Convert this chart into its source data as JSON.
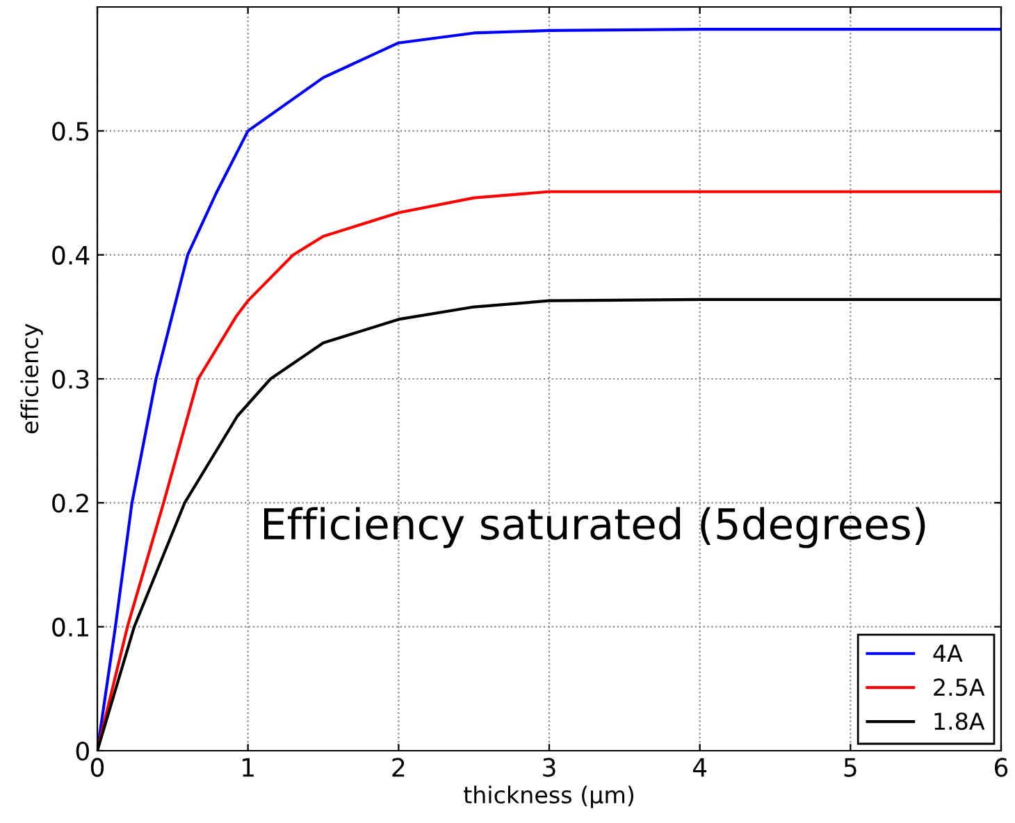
{
  "chart_data": {
    "type": "line",
    "xlabel": "thickness (μm)",
    "ylabel": "efficiency",
    "annotations": [
      "Efficiency saturated (5degrees)"
    ],
    "xlim": [
      0,
      6
    ],
    "xticks": [
      0,
      1,
      2,
      3,
      4,
      5,
      6
    ],
    "ylim": [
      0,
      0.6
    ],
    "yticks": [
      0,
      0.1,
      0.2,
      0.3,
      0.4,
      0.5
    ],
    "grid": true,
    "legend": "bottom right",
    "line_style": "solid",
    "marker": "none",
    "series": [
      {
        "name": "4A",
        "color": "#0000ff",
        "x": [
          0,
          0.12,
          0.23,
          0.39,
          0.6,
          0.79,
          1.0,
          1.5,
          2,
          2.5,
          3,
          4,
          5,
          6
        ],
        "values": [
          0,
          0.1,
          0.2,
          0.3,
          0.4,
          0.45,
          0.5,
          0.543,
          0.571,
          0.579,
          0.581,
          0.582,
          0.582,
          0.582
        ]
      },
      {
        "name": "2.5A",
        "color": "#ff0000",
        "x": [
          0,
          0.2,
          0.44,
          0.67,
          0.92,
          1.0,
          1.3,
          1.5,
          2,
          2.5,
          3,
          4,
          5,
          6
        ],
        "values": [
          0,
          0.1,
          0.2,
          0.3,
          0.35,
          0.363,
          0.4,
          0.415,
          0.434,
          0.446,
          0.451,
          0.451,
          0.451,
          0.451
        ]
      },
      {
        "name": "1.8A",
        "color": "#000000",
        "x": [
          0,
          0.245,
          0.58,
          0.93,
          1.15,
          1.5,
          2,
          2.5,
          3,
          4,
          5,
          6
        ],
        "values": [
          0,
          0.1,
          0.2,
          0.27,
          0.3,
          0.329,
          0.348,
          0.358,
          0.363,
          0.364,
          0.364,
          0.364
        ]
      }
    ]
  }
}
